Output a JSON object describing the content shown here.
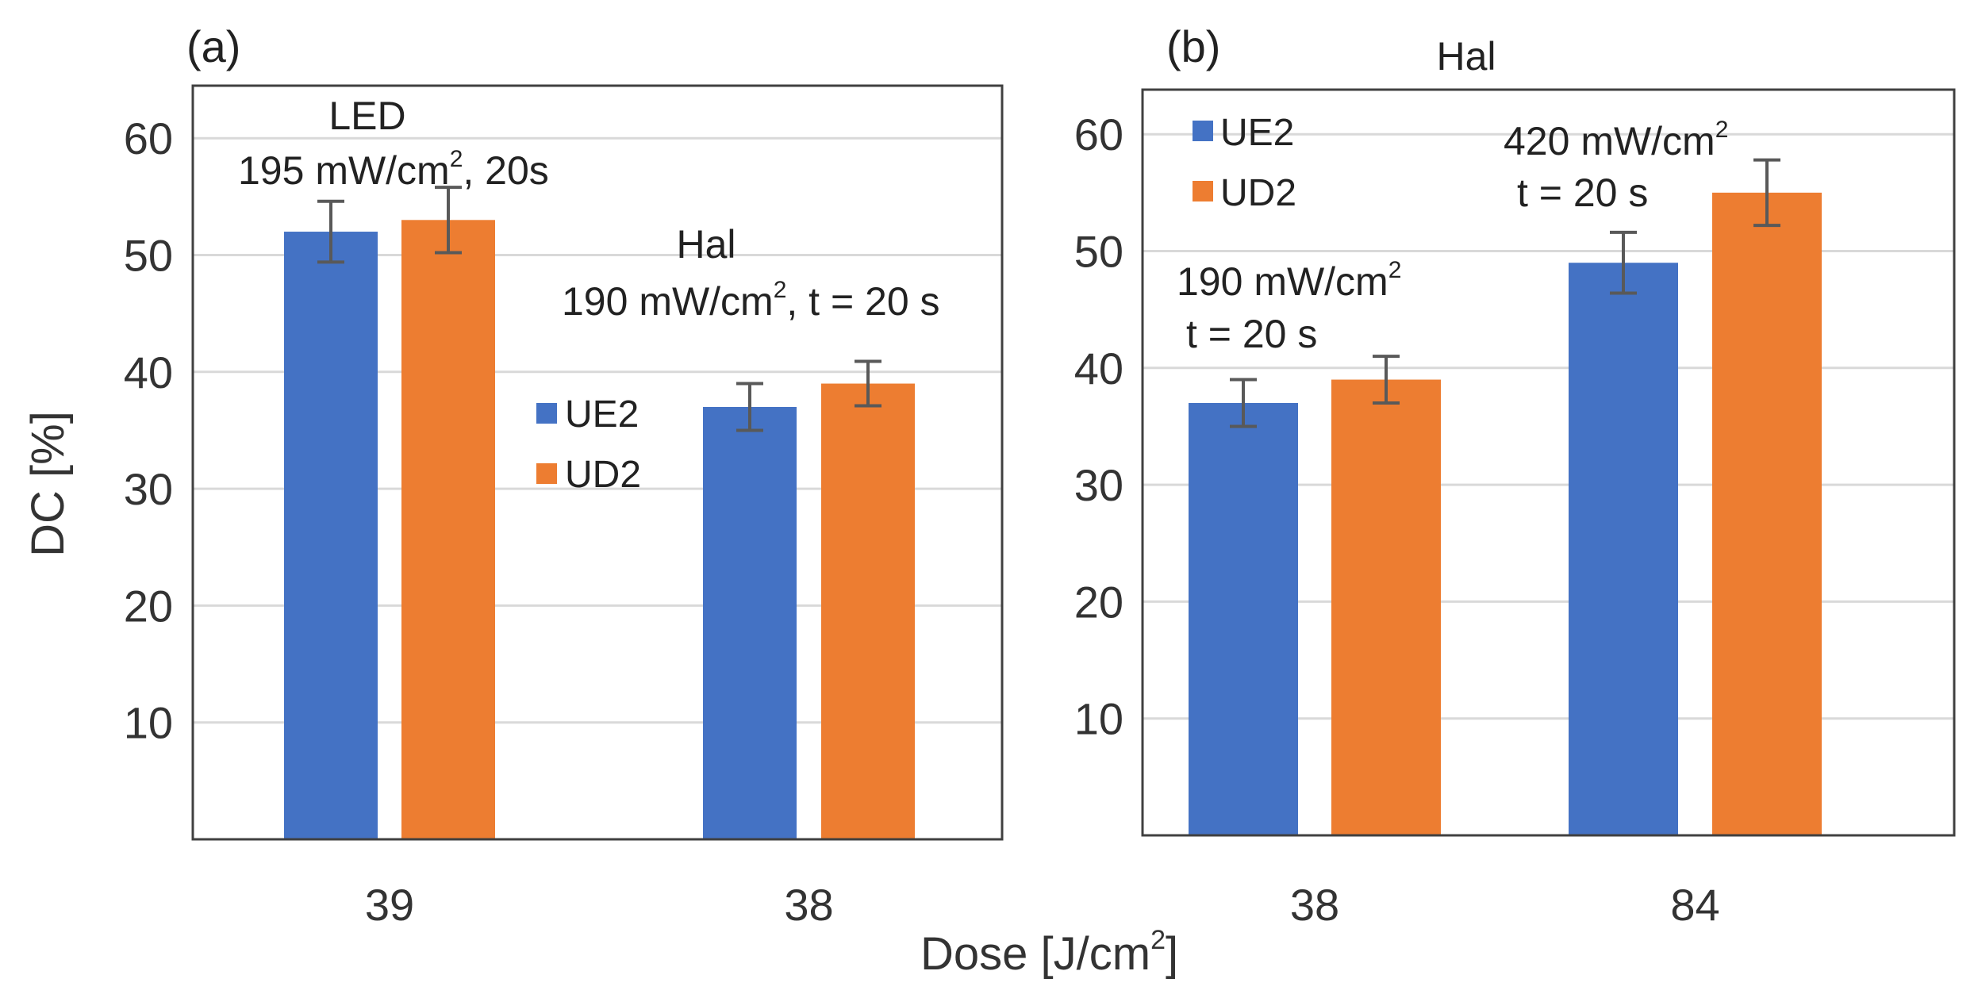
{
  "figure": {
    "ylabel": "DC [%]",
    "xlabel_main": "Dose [J/cm",
    "xlabel_sup": "2",
    "xlabel_end": "]"
  },
  "legend_entries": [
    "UE2",
    "UD2"
  ],
  "colors": {
    "UE2": "#4472c4",
    "UD2": "#ed7d31",
    "error_bar": "#595959"
  },
  "panel_a": {
    "label": "(a)",
    "annotations": {
      "led_title": "LED",
      "led_dose_main": "195 mW/cm",
      "led_dose_sup": "2",
      "led_dose_end": ", 20s",
      "hal_title": "Hal",
      "hal_dose_main": "190 mW/cm",
      "hal_dose_sup": "2",
      "hal_dose_end": ", t = 20 s"
    }
  },
  "panel_b": {
    "label": "(b)",
    "title": "Hal",
    "annotations": {
      "low_main": "190 mW/cm",
      "low_sup": "2",
      "low_time": "t = 20 s",
      "high_main": "420 mW/cm",
      "high_sup": "2",
      "high_time": "t = 20 s"
    }
  },
  "chart_data": [
    {
      "type": "bar",
      "panel": "(a)",
      "title": "",
      "xlabel": "Dose [J/cm2]",
      "ylabel": "DC [%]",
      "categories": [
        "39",
        "38"
      ],
      "series": [
        {
          "name": "UE2",
          "values": [
            52,
            37
          ],
          "errors": [
            2.6,
            2.0
          ]
        },
        {
          "name": "UD2",
          "values": [
            53,
            39
          ],
          "errors": [
            2.8,
            1.9
          ]
        }
      ],
      "yticks": [
        10,
        20,
        30,
        40,
        50,
        60
      ],
      "ylim": [
        0,
        64
      ],
      "grid": true,
      "legend": "middle-right"
    },
    {
      "type": "bar",
      "panel": "(b)",
      "title": "Hal",
      "xlabel": "Dose [J/cm2]",
      "ylabel": "DC [%]",
      "categories": [
        "38",
        "84"
      ],
      "series": [
        {
          "name": "UE2",
          "values": [
            37,
            49
          ],
          "errors": [
            2.0,
            2.6
          ]
        },
        {
          "name": "UD2",
          "values": [
            39,
            55
          ],
          "errors": [
            2.0,
            2.8
          ]
        }
      ],
      "yticks": [
        10,
        20,
        30,
        40,
        50,
        60
      ],
      "ylim": [
        0,
        64
      ],
      "grid": true,
      "legend": "top-left"
    }
  ]
}
